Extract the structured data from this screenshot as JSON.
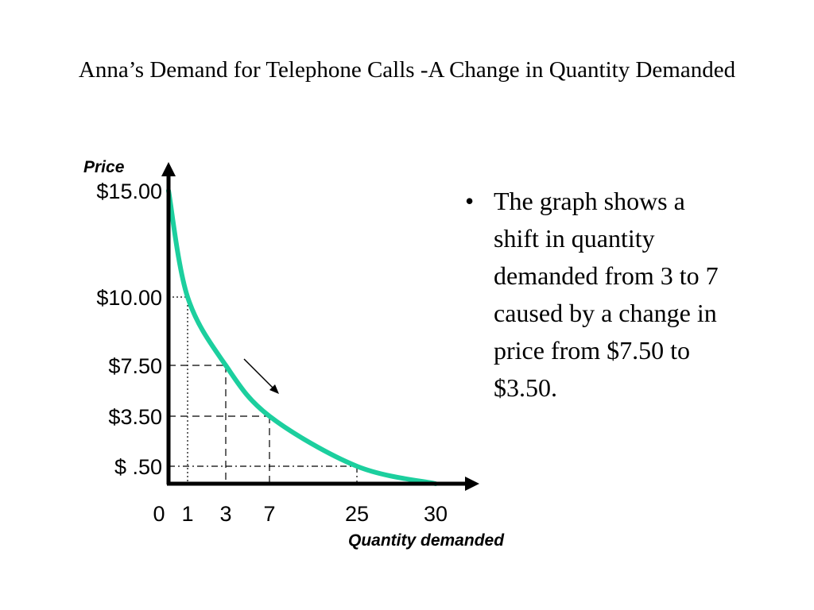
{
  "slide": {
    "title": "Anna’s Demand for Telephone Calls -A Change in Quantity Demanded",
    "bullet": "•",
    "bullet_text": "The graph shows a shift in quantity demanded from 3 to 7 caused by a change in price from $7.50 to $3.50."
  },
  "chart_data": {
    "type": "line",
    "xlabel": "Quantity demanded",
    "ylabel": "Price",
    "x_ticks": [
      0,
      1,
      3,
      7,
      25,
      30
    ],
    "x_tick_labels": [
      "0",
      "1",
      "3",
      "7",
      "25",
      "30"
    ],
    "y_ticks": [
      15.0,
      10.0,
      7.5,
      3.5,
      0.5
    ],
    "y_tick_labels": [
      "$15.00",
      "$10.00",
      "$7.50",
      "$3.50",
      "$ .50"
    ],
    "series": [
      {
        "color": "#1ccf9e",
        "points": [
          [
            0,
            15.0
          ],
          [
            1,
            10.0
          ],
          [
            3,
            7.5
          ],
          [
            7,
            3.5
          ],
          [
            25,
            0.5
          ],
          [
            30,
            0
          ]
        ]
      }
    ],
    "reference_points": [
      {
        "x": 1,
        "y": 10.0,
        "style": "dotted"
      },
      {
        "x": 3,
        "y": 7.5,
        "style": "dashed"
      },
      {
        "x": 7,
        "y": 3.5,
        "style": "dashed"
      },
      {
        "x": 25,
        "y": 0.5,
        "style": "dash-dot"
      }
    ],
    "annotation": {
      "type": "arrow",
      "direction": "down-right"
    },
    "grid": false,
    "legend": "none"
  }
}
